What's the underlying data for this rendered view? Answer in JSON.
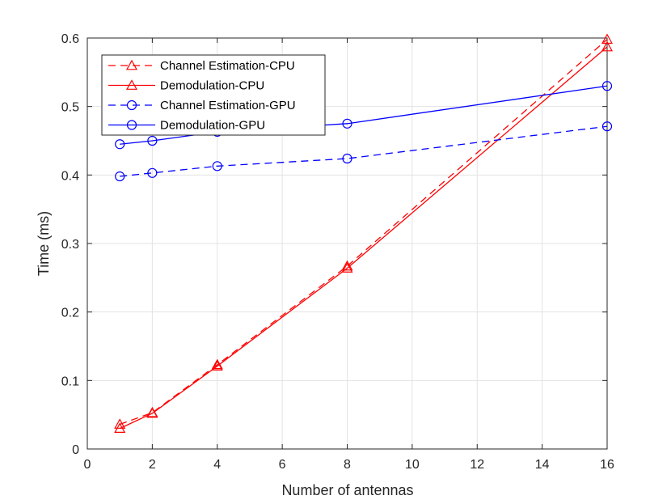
{
  "chart_data": {
    "type": "line",
    "title": "",
    "xlabel": "Number of antennas",
    "ylabel": "Time (ms)",
    "xlim": [
      0,
      16
    ],
    "ylim": [
      0,
      0.6
    ],
    "xticks": [
      0,
      2,
      4,
      6,
      8,
      10,
      12,
      14,
      16
    ],
    "yticks": [
      0,
      0.1,
      0.2,
      0.3,
      0.4,
      0.5,
      0.6
    ],
    "xtick_labels": [
      "0",
      "2",
      "4",
      "6",
      "8",
      "10",
      "12",
      "14",
      "16"
    ],
    "ytick_labels": [
      "0",
      "0.1",
      "0.2",
      "0.3",
      "0.4",
      "0.5",
      "0.6"
    ],
    "grid": true,
    "legend_position": "top-left",
    "x": [
      1,
      2,
      4,
      8,
      16
    ],
    "series": [
      {
        "name": "Channel Estimation-CPU",
        "values": [
          0.036,
          0.053,
          0.123,
          0.267,
          0.598
        ],
        "color": "#ff0000",
        "dash": "dashed",
        "marker": "triangle"
      },
      {
        "name": "Demodulation-CPU",
        "values": [
          0.03,
          0.052,
          0.121,
          0.264,
          0.587
        ],
        "color": "#ff0000",
        "dash": "solid",
        "marker": "triangle"
      },
      {
        "name": "Channel Estimation-GPU",
        "values": [
          0.398,
          0.403,
          0.413,
          0.424,
          0.471
        ],
        "color": "#0000ff",
        "dash": "dashed",
        "marker": "circle"
      },
      {
        "name": "Demodulation-GPU",
        "values": [
          0.445,
          0.45,
          0.463,
          0.475,
          0.53
        ],
        "color": "#0000ff",
        "dash": "solid",
        "marker": "circle"
      }
    ]
  }
}
